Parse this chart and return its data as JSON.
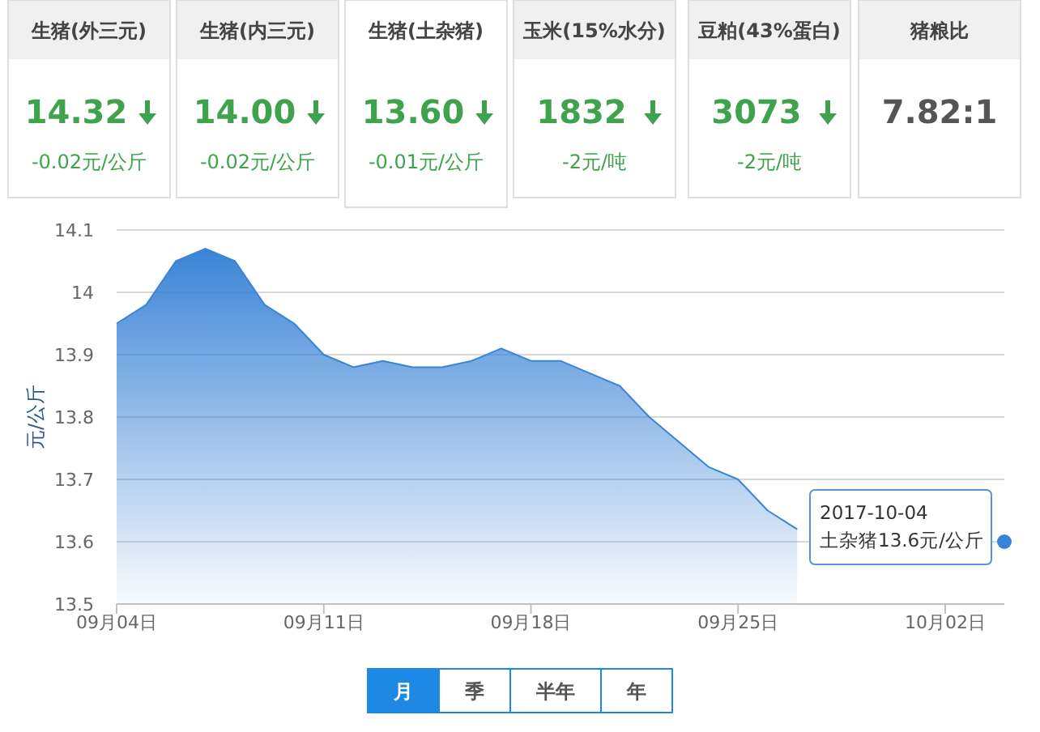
{
  "chart_data": [
    {
      "type": "other",
      "title": "生猪(外三元)",
      "subtitle": "14.32",
      "annotations": [
        "-0.02元/公斤"
      ]
    },
    {
      "type": "other",
      "title": "生猪(内三元)",
      "subtitle": "14.00",
      "annotations": [
        "-0.02元/公斤"
      ]
    },
    {
      "type": "other",
      "title": "生猪(土杂猪)",
      "subtitle": "13.60",
      "annotations": [
        "-0.01元/公斤"
      ]
    },
    {
      "type": "other",
      "title": "玉米(15%水分)",
      "subtitle": "1832",
      "annotations": [
        "-2元/吨"
      ]
    },
    {
      "type": "other",
      "title": "豆粕(43%蛋白)",
      "subtitle": "3073",
      "annotations": [
        "-2元/吨"
      ]
    },
    {
      "type": "other",
      "title": "猪粮比",
      "subtitle": "7.82:1"
    },
    {
      "type": "area",
      "ylabel": "元/公斤",
      "x": [
        "2017-09-04",
        "2017-09-05",
        "2017-09-06",
        "2017-09-07",
        "2017-09-08",
        "2017-09-09",
        "2017-09-10",
        "2017-09-11",
        "2017-09-12",
        "2017-09-13",
        "2017-09-14",
        "2017-09-15",
        "2017-09-16",
        "2017-09-17",
        "2017-09-18",
        "2017-09-19",
        "2017-09-20",
        "2017-09-21",
        "2017-09-22",
        "2017-09-23",
        "2017-09-24",
        "2017-09-25",
        "2017-09-26",
        "2017-09-27",
        "2017-09-28",
        "2017-09-29",
        "2017-09-30",
        "2017-10-01",
        "2017-10-02",
        "2017-10-03",
        "2017-10-04"
      ],
      "series": [
        {
          "color": "#3a84d6",
          "values": [
            13.95,
            13.98,
            14.05,
            14.07,
            14.05,
            13.98,
            13.95,
            13.9,
            13.88,
            13.89,
            13.88,
            13.88,
            13.89,
            13.91,
            13.89,
            13.89,
            13.87,
            13.85,
            13.8,
            13.76,
            13.72,
            13.7,
            13.65,
            13.62,
            null,
            null,
            null,
            null,
            null,
            null,
            13.6
          ]
        }
      ],
      "xlim": [
        "2017-09-04",
        "2017-10-04"
      ],
      "xticks": [
        {
          "value": "2017-09-04",
          "label": "09月04日"
        },
        {
          "value": "2017-09-11",
          "label": "09月11日"
        },
        {
          "value": "2017-09-18",
          "label": "09月18日"
        },
        {
          "value": "2017-09-25",
          "label": "09月25日"
        },
        {
          "value": "2017-10-02",
          "label": "10月02日"
        }
      ],
      "ylim": [
        13.5,
        14.1
      ],
      "yticks": [
        13.5,
        13.6,
        13.7,
        13.8,
        13.9,
        14,
        14.1
      ],
      "grid": "y",
      "annotations": [
        {
          "text": "2017-10-04\n土杂猪13.6元/公斤",
          "x": "2017-10-04",
          "y": 13.6
        },
        "月",
        "季",
        "半年",
        "年"
      ]
    }
  ]
}
